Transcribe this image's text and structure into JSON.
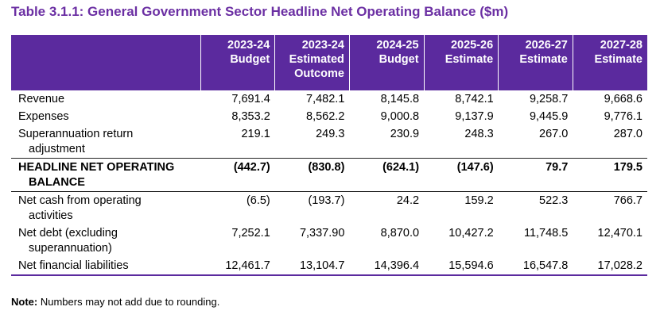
{
  "title": "Table 3.1.1: General Government Sector Headline Net Operating Balance ($m)",
  "columns": [
    {
      "year": "2023-24",
      "label1": "Budget",
      "label2": ""
    },
    {
      "year": "2023-24",
      "label1": "Estimated",
      "label2": "Outcome"
    },
    {
      "year": "2024-25",
      "label1": "Budget",
      "label2": ""
    },
    {
      "year": "2025-26",
      "label1": "Estimate",
      "label2": ""
    },
    {
      "year": "2026-27",
      "label1": "Estimate",
      "label2": ""
    },
    {
      "year": "2027-28",
      "label1": "Estimate",
      "label2": ""
    }
  ],
  "rows": [
    {
      "label1": "Revenue",
      "label2": "",
      "values": [
        "7,691.4",
        "7,482.1",
        "8,145.8",
        "8,742.1",
        "9,258.7",
        "9,668.6"
      ]
    },
    {
      "label1": "Expenses",
      "label2": "",
      "values": [
        "8,353.2",
        "8,562.2",
        "9,000.8",
        "9,137.9",
        "9,445.9",
        "9,776.1"
      ]
    },
    {
      "label1": "Superannuation return",
      "label2": "adjustment",
      "values": [
        "219.1",
        "249.3",
        "230.9",
        "248.3",
        "267.0",
        "287.0"
      ]
    },
    {
      "label1": "HEADLINE NET OPERATING",
      "label2": "BALANCE",
      "values": [
        "(442.7)",
        "(830.8)",
        "(624.1)",
        "(147.6)",
        "79.7",
        "179.5"
      ]
    },
    {
      "label1": "Net cash from operating",
      "label2": "activities",
      "values": [
        "(6.5)",
        "(193.7)",
        "24.2",
        "159.2",
        "522.3",
        "766.7"
      ]
    },
    {
      "label1": "Net debt (excluding",
      "label2": "superannuation)",
      "values": [
        "7,252.1",
        "7,337.90",
        "8,870.0",
        "10,427.2",
        "11,748.5",
        "12,470.1"
      ]
    },
    {
      "label1": "Net financial liabilities",
      "label2": "",
      "values": [
        "12,461.7",
        "13,104.7",
        "14,396.4",
        "15,594.6",
        "16,547.8",
        "17,028.2"
      ]
    }
  ],
  "note": {
    "prefix": "Note:",
    "text": "Numbers may not add due to rounding."
  },
  "colors": {
    "title": "#6b2fa3",
    "header_bg": "#5b2a9e",
    "header_text": "#ffffff"
  }
}
